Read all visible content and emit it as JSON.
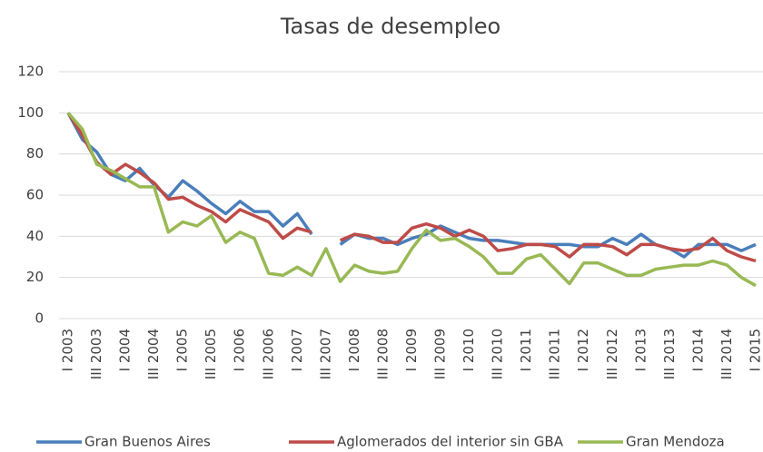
{
  "chart_data": {
    "type": "line",
    "title": "Tasas de desempleo",
    "categories": [
      "I 2003",
      null,
      "III 2003",
      null,
      "I 2004",
      null,
      "III 2004",
      null,
      "I 2005",
      null,
      "III 2005",
      null,
      "I 2006",
      null,
      "III 2006",
      null,
      "I 2007",
      null,
      "III 2007",
      null,
      "I 2008",
      null,
      "III 2008",
      null,
      "I 2009",
      null,
      "III 2009",
      null,
      "I 2010",
      null,
      "III 2010",
      null,
      "I 2011",
      null,
      "III 2011",
      null,
      "I 2012",
      null,
      "III 2012",
      null,
      "I 2013",
      null,
      "III 2013",
      null,
      "I 2014",
      null,
      "III 2014",
      null,
      "I 2015"
    ],
    "series": [
      {
        "name": "Gran Buenos Aires",
        "color": "#4a7ebb",
        "values": [
          100,
          87,
          81,
          70,
          67,
          73,
          65,
          59,
          67,
          62,
          56,
          51,
          57,
          52,
          52,
          45,
          51,
          41,
          null,
          36,
          41,
          39,
          39,
          36,
          39,
          41,
          45,
          42,
          39,
          38,
          38,
          37,
          36,
          36,
          36,
          36,
          35,
          35,
          39,
          36,
          41,
          36,
          34,
          30,
          36,
          36,
          36,
          33,
          36
        ]
      },
      {
        "name": "Aglomerados del interior sin GBA",
        "color": "#be4b48",
        "values": [
          100,
          89,
          76,
          70,
          75,
          71,
          66,
          58,
          59,
          55,
          52,
          47,
          53,
          50,
          47,
          39,
          44,
          42,
          null,
          38,
          41,
          40,
          37,
          37,
          44,
          46,
          44,
          40,
          43,
          40,
          33,
          34,
          36,
          36,
          35,
          30,
          36,
          36,
          35,
          31,
          36,
          36,
          34,
          33,
          34,
          39,
          33,
          30,
          28
        ]
      },
      {
        "name": "Gran Mendoza",
        "color": "#98b954",
        "values": [
          100,
          92,
          75,
          72,
          68,
          64,
          64,
          42,
          47,
          45,
          50,
          37,
          42,
          39,
          22,
          21,
          25,
          21,
          34,
          18,
          26,
          23,
          22,
          23,
          34,
          43,
          38,
          39,
          35,
          30,
          22,
          22,
          29,
          31,
          24,
          17,
          27,
          27,
          24,
          21,
          21,
          24,
          25,
          26,
          26,
          28,
          26,
          20,
          16
        ]
      }
    ],
    "ylim": [
      0,
      120
    ],
    "yticks": [
      0,
      20,
      40,
      60,
      80,
      100,
      120
    ],
    "grid": true,
    "legend": "bottom"
  }
}
